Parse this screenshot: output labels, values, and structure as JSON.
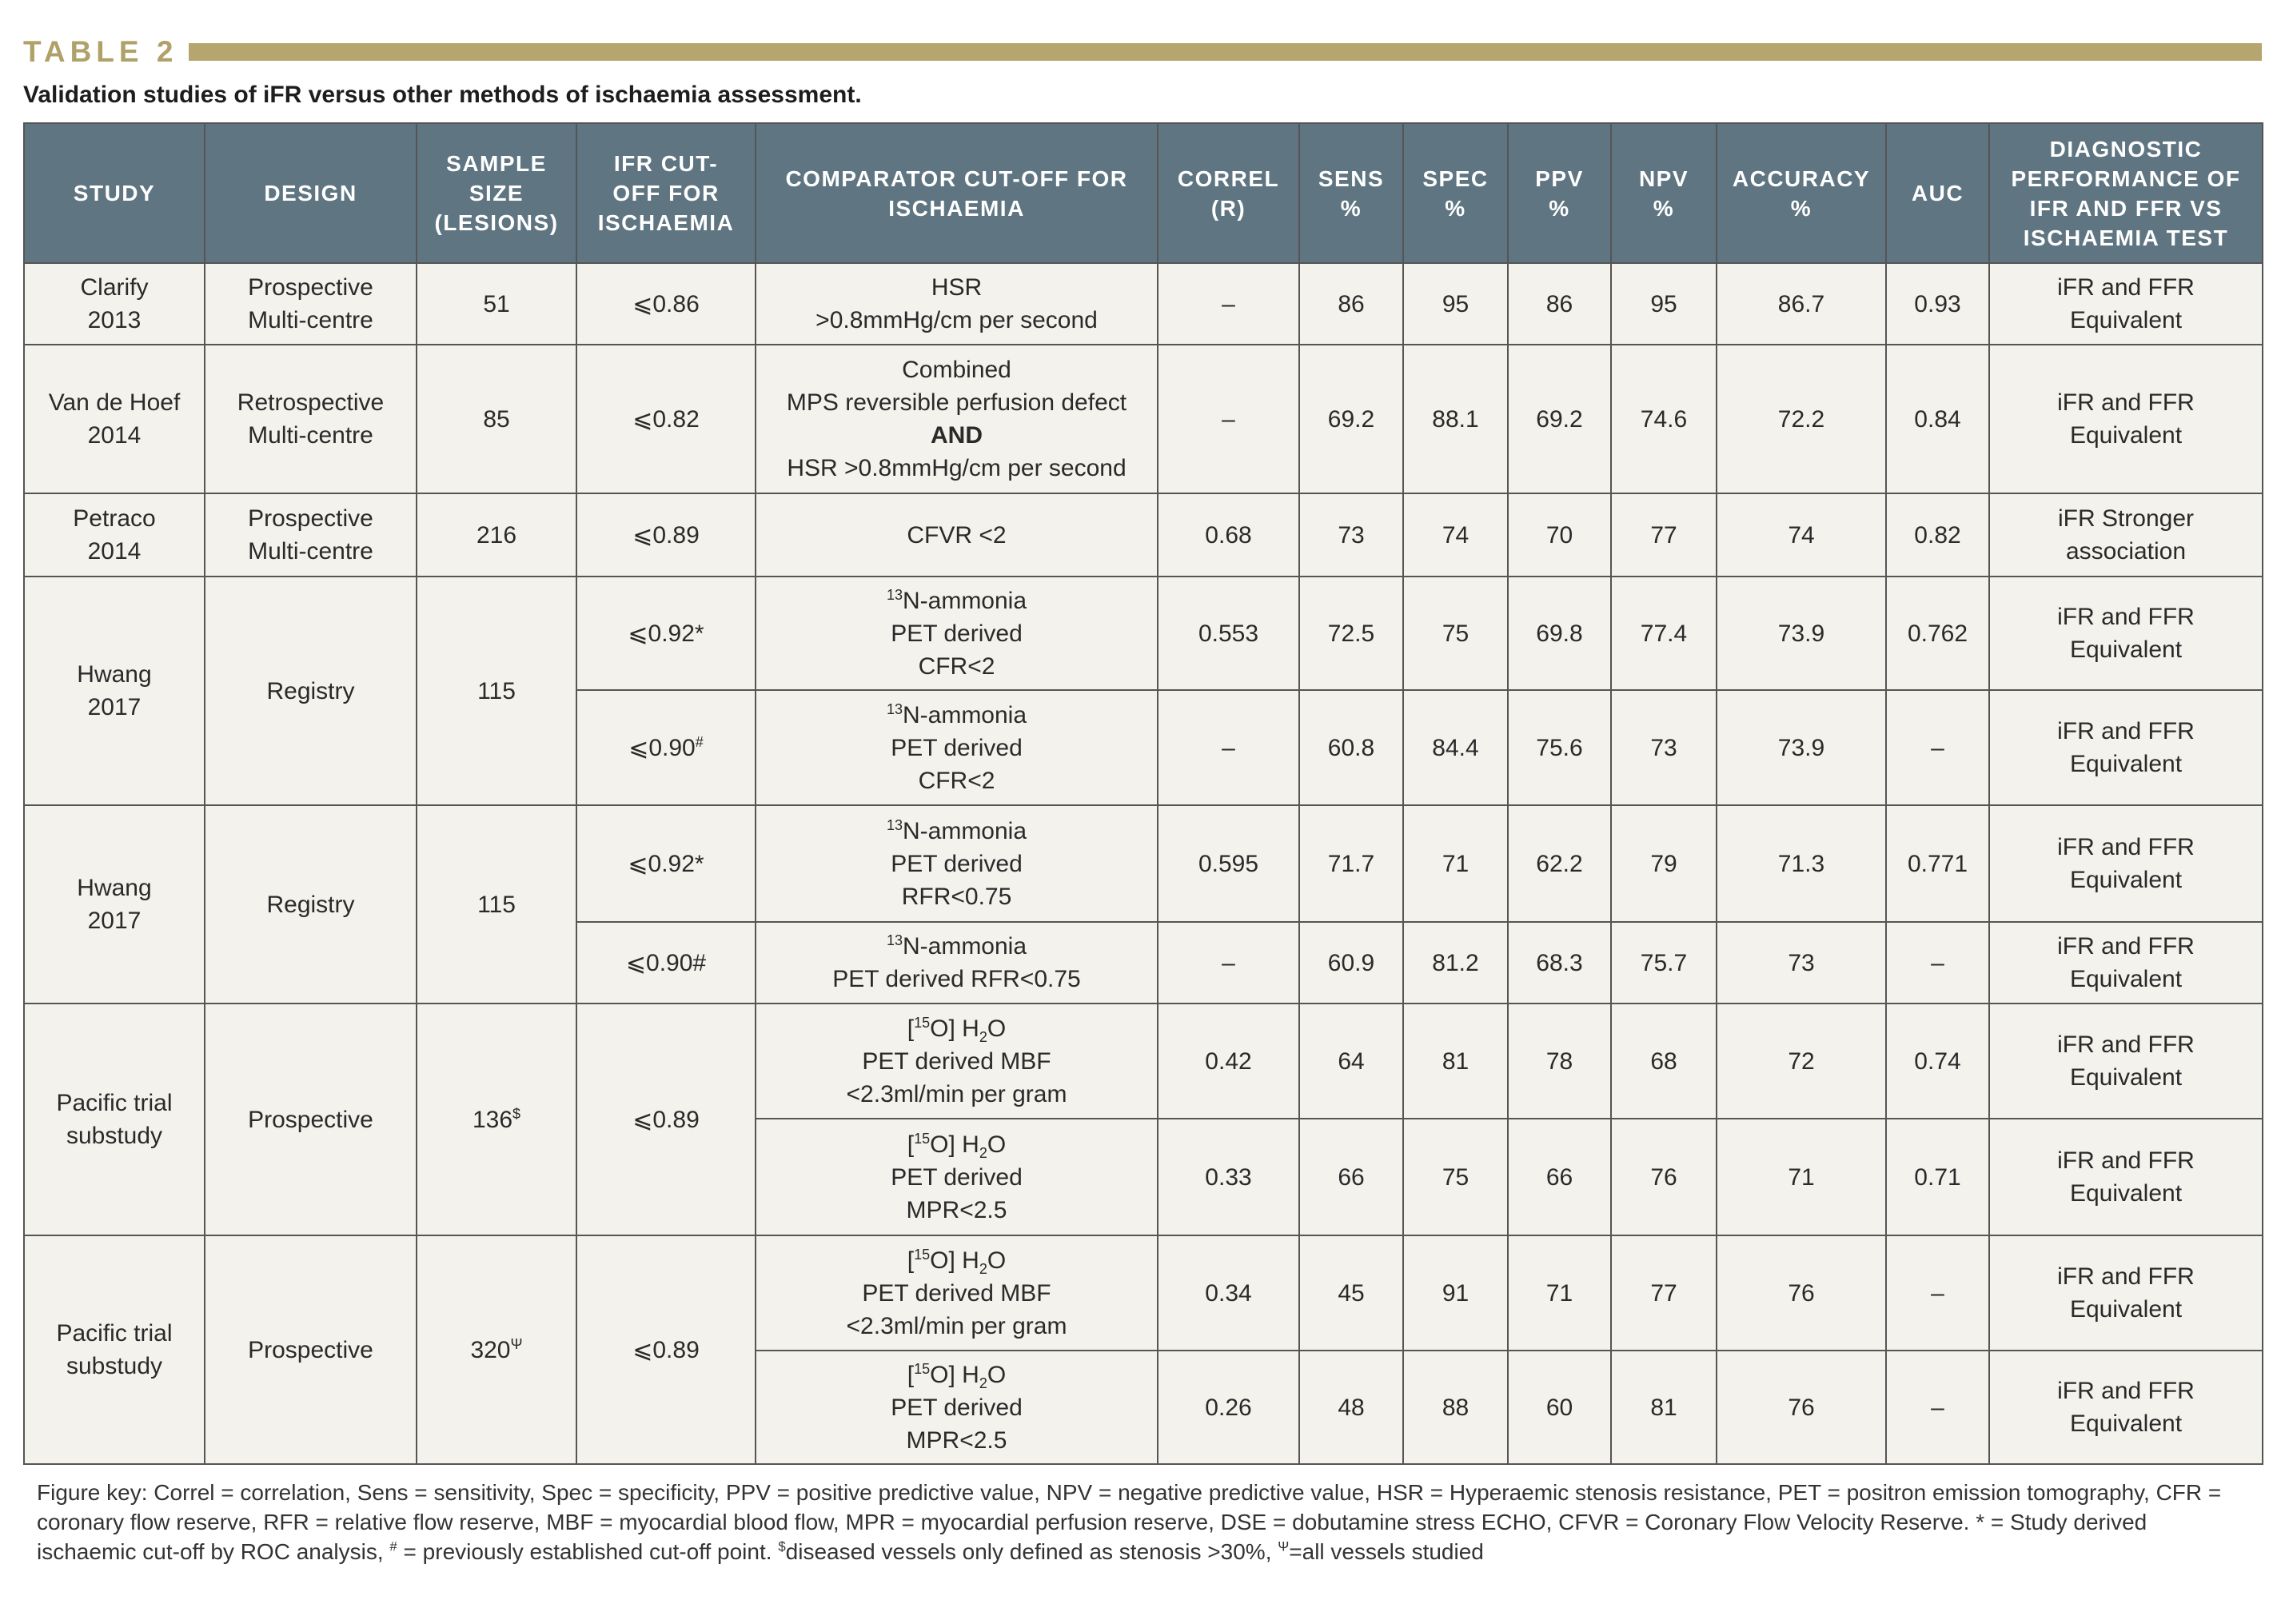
{
  "title": "TABLE 2",
  "caption": "Validation studies of iFR versus other methods of ischaemia assessment.",
  "table": {
    "header": [
      [
        "STUDY"
      ],
      [
        "DESIGN"
      ],
      [
        "SAMPLE",
        "SIZE",
        "(LESIONS)"
      ],
      [
        "IFR CUT-",
        "OFF FOR",
        "ISCHAEMIA"
      ],
      [
        "COMPARATOR CUT-OFF FOR",
        "ISCHAEMIA"
      ],
      [
        "CORREL",
        "(R)"
      ],
      [
        "SENS",
        "%"
      ],
      [
        "SPEC",
        "%"
      ],
      [
        "PPV",
        "%"
      ],
      [
        "NPV",
        "%"
      ],
      [
        "ACCURACY",
        "%"
      ],
      [
        "AUC"
      ],
      [
        "DIAGNOSTIC",
        "PERFORMANCE OF",
        "IFR AND FFR VS",
        "ISCHAEMIA TEST"
      ]
    ],
    "studies": [
      {
        "study": [
          "Clarify",
          "2013"
        ],
        "design": [
          "Prospective",
          "Multi-centre"
        ],
        "sample_size": 51,
        "rows": [
          {
            "cutoff": "⩽0.86",
            "comparator": [
              "HSR",
              ">0.8mmHg/cm per second"
            ],
            "correl": "–",
            "sens": 86,
            "spec": 95,
            "ppv": 86,
            "npv": 95,
            "accuracy": 86.7,
            "auc": 0.93,
            "performance": [
              "iFR and FFR",
              "Equivalent"
            ]
          }
        ]
      },
      {
        "study": [
          "Van de Hoef",
          "2014"
        ],
        "design": [
          "Retrospective",
          "Multi-centre"
        ],
        "sample_size": 85,
        "rows": [
          {
            "cutoff": "⩽0.82",
            "comparator": [
              "Combined",
              "MPS reversible perfusion defect",
              [
                {
                  "text": "AND",
                  "bold": true
                }
              ],
              "HSR >0.8mmHg/cm per second"
            ],
            "correl": "–",
            "sens": 69.2,
            "spec": 88.1,
            "ppv": 69.2,
            "npv": 74.6,
            "accuracy": 72.2,
            "auc": 0.84,
            "performance": [
              "iFR and FFR",
              "Equivalent"
            ]
          }
        ]
      },
      {
        "study": [
          "Petraco",
          "2014"
        ],
        "design": [
          "Prospective",
          "Multi-centre"
        ],
        "sample_size": 216,
        "rows": [
          {
            "cutoff": "⩽0.89",
            "comparator": [
              "CFVR <2"
            ],
            "correl": 0.68,
            "sens": 73,
            "spec": 74,
            "ppv": 70,
            "npv": 77,
            "accuracy": 74,
            "auc": 0.82,
            "performance": [
              "iFR Stronger",
              "association"
            ]
          }
        ]
      },
      {
        "study": [
          "Hwang",
          "2017"
        ],
        "design": [
          "Registry"
        ],
        "sample_size": 115,
        "rows": [
          {
            "cutoff": "⩽0.92*",
            "comparator": [
              [
                {
                  "text": "13",
                  "sup": true
                },
                {
                  "text": "N-ammonia"
                }
              ],
              "PET derived",
              "CFR<2"
            ],
            "correl": 0.553,
            "sens": 72.5,
            "spec": 75,
            "ppv": 69.8,
            "npv": 77.4,
            "accuracy": 73.9,
            "auc": 0.762,
            "performance": [
              "iFR and FFR",
              "Equivalent"
            ]
          },
          {
            "cutoff": [
              [
                {
                  "text": "⩽0.90"
                },
                {
                  "text": "#",
                  "sup": true
                }
              ]
            ],
            "comparator": [
              [
                {
                  "text": "13",
                  "sup": true
                },
                {
                  "text": "N-ammonia"
                }
              ],
              "PET derived",
              "CFR<2"
            ],
            "correl": "–",
            "sens": 60.8,
            "spec": 84.4,
            "ppv": 75.6,
            "npv": 73,
            "accuracy": 73.9,
            "auc": "–",
            "performance": [
              "iFR and FFR",
              "Equivalent"
            ]
          }
        ]
      },
      {
        "study": [
          "Hwang",
          "2017"
        ],
        "design": [
          "Registry"
        ],
        "sample_size": 115,
        "rows": [
          {
            "cutoff": "⩽0.92*",
            "comparator": [
              [
                {
                  "text": "13",
                  "sup": true
                },
                {
                  "text": "N-ammonia"
                }
              ],
              "PET derived",
              "RFR<0.75"
            ],
            "correl": 0.595,
            "sens": 71.7,
            "spec": 71,
            "ppv": 62.2,
            "npv": 79,
            "accuracy": 71.3,
            "auc": 0.771,
            "performance": [
              "iFR and FFR",
              "Equivalent"
            ]
          },
          {
            "cutoff": "⩽0.90#",
            "comparator": [
              [
                {
                  "text": "13",
                  "sup": true
                },
                {
                  "text": "N-ammonia"
                }
              ],
              "PET derived RFR<0.75"
            ],
            "correl": "–",
            "sens": 60.9,
            "spec": 81.2,
            "ppv": 68.3,
            "npv": 75.7,
            "accuracy": 73,
            "auc": "–",
            "performance": [
              "iFR and FFR",
              "Equivalent"
            ]
          }
        ]
      },
      {
        "study": [
          "Pacific trial",
          "substudy"
        ],
        "design": [
          "Prospective"
        ],
        "sample_size": [
          [
            {
              "text": "136"
            },
            {
              "text": "$",
              "sup": true
            }
          ]
        ],
        "cutoff": "⩽0.89",
        "rows": [
          {
            "comparator": [
              [
                {
                  "text": "["
                },
                {
                  "text": "15",
                  "sup": true
                },
                {
                  "text": "O] H"
                },
                {
                  "text": "2",
                  "sub": true
                },
                {
                  "text": "O"
                }
              ],
              "PET derived MBF",
              "<2.3ml/min per gram"
            ],
            "correl": 0.42,
            "sens": 64,
            "spec": 81,
            "ppv": 78,
            "npv": 68,
            "accuracy": 72,
            "auc": 0.74,
            "performance": [
              "iFR and FFR",
              "Equivalent"
            ]
          },
          {
            "comparator": [
              [
                {
                  "text": "["
                },
                {
                  "text": "15",
                  "sup": true
                },
                {
                  "text": "O] H"
                },
                {
                  "text": "2",
                  "sub": true
                },
                {
                  "text": "O"
                }
              ],
              "PET derived",
              "MPR<2.5"
            ],
            "correl": 0.33,
            "sens": 66,
            "spec": 75,
            "ppv": 66,
            "npv": 76,
            "accuracy": 71,
            "auc": 0.71,
            "performance": [
              "iFR and FFR",
              "Equivalent"
            ]
          }
        ]
      },
      {
        "study": [
          "Pacific trial",
          "substudy"
        ],
        "design": [
          "Prospective"
        ],
        "sample_size": [
          [
            {
              "text": "320"
            },
            {
              "text": "Ψ",
              "sup": true
            }
          ]
        ],
        "cutoff": "⩽0.89",
        "rows": [
          {
            "comparator": [
              [
                {
                  "text": "["
                },
                {
                  "text": "15",
                  "sup": true
                },
                {
                  "text": "O] H"
                },
                {
                  "text": "2",
                  "sub": true
                },
                {
                  "text": "O"
                }
              ],
              "PET derived MBF",
              "<2.3ml/min per gram"
            ],
            "correl": 0.34,
            "sens": 45,
            "spec": 91,
            "ppv": 71,
            "npv": 77,
            "accuracy": 76,
            "auc": "–",
            "performance": [
              "iFR and FFR",
              "Equivalent"
            ]
          },
          {
            "comparator": [
              [
                {
                  "text": "["
                },
                {
                  "text": "15",
                  "sup": true
                },
                {
                  "text": "O] H"
                },
                {
                  "text": "2",
                  "sub": true
                },
                {
                  "text": "O"
                }
              ],
              "PET derived",
              "MPR<2.5"
            ],
            "correl": 0.26,
            "sens": 48,
            "spec": 88,
            "ppv": 60,
            "npv": 81,
            "accuracy": 76,
            "auc": "–",
            "performance": [
              "iFR and FFR",
              "Equivalent"
            ]
          }
        ]
      }
    ]
  },
  "footnote": [
    {
      "text": "Figure key: Correl = correlation, Sens = sensitivity, Spec = specificity, PPV = positive predictive value, NPV = negative predictive value, HSR = Hyperaemic stenosis resistance, PET = positron emission tomography, CFR = coronary flow reserve, RFR = relative flow reserve, MBF = myocardial blood flow, MPR = myocardial perfusion reserve, DSE = dobutamine stress ECHO, CFVR = Coronary Flow Velocity Reserve. * = Study derived ischaemic cut-off by ROC analysis, "
    },
    {
      "text": "#",
      "sup": true
    },
    {
      "text": " = previously established cut-off point. "
    },
    {
      "text": "$",
      "sup": true
    },
    {
      "text": "diseased vessels only defined as stenosis >30%, "
    },
    {
      "text": "Ψ",
      "sup": true
    },
    {
      "text": "=all vessels studied"
    }
  ]
}
